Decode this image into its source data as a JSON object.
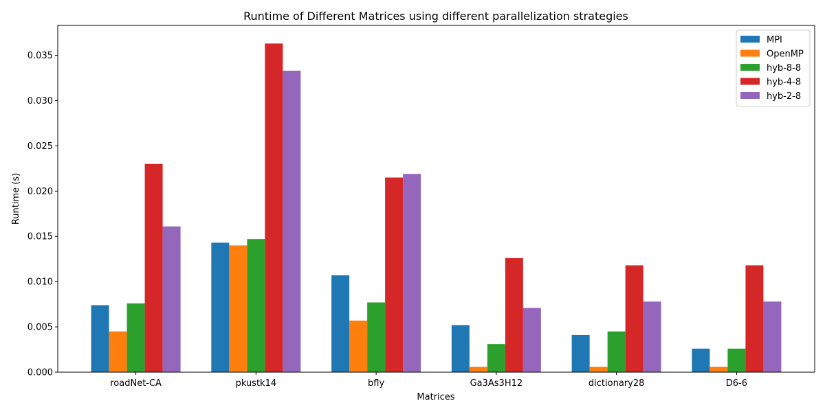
{
  "chart_data": {
    "type": "bar",
    "title": "Runtime of Different Matrices using different parallelization strategies",
    "xlabel": "Matrices",
    "ylabel": "Runtime (s)",
    "ylim": [
      0,
      0.0383
    ],
    "yticks": [
      "0.000",
      "0.005",
      "0.010",
      "0.015",
      "0.020",
      "0.025",
      "0.030",
      "0.035"
    ],
    "grid": false,
    "legend_position": "top-right",
    "categories": [
      "roadNet-CA",
      "pkustk14",
      "bfly",
      "Ga3As3H12",
      "dictionary28",
      "D6-6"
    ],
    "series": [
      {
        "name": "MPI",
        "color": "#1f77b4",
        "values": [
          0.0074,
          0.0143,
          0.0107,
          0.0052,
          0.0041,
          0.0026
        ]
      },
      {
        "name": "OpenMP",
        "color": "#ff7f0e",
        "values": [
          0.0045,
          0.014,
          0.0057,
          0.0006,
          0.0006,
          0.0006
        ]
      },
      {
        "name": "hyb-8-8",
        "color": "#2ca02c",
        "values": [
          0.0076,
          0.0147,
          0.0077,
          0.0031,
          0.0045,
          0.0026
        ]
      },
      {
        "name": "hyb-4-8",
        "color": "#d62728",
        "values": [
          0.023,
          0.0363,
          0.0215,
          0.0126,
          0.0118,
          0.0118
        ]
      },
      {
        "name": "hyb-2-8",
        "color": "#9467bd",
        "values": [
          0.0161,
          0.0333,
          0.0219,
          0.0071,
          0.0078,
          0.0078
        ]
      }
    ]
  }
}
